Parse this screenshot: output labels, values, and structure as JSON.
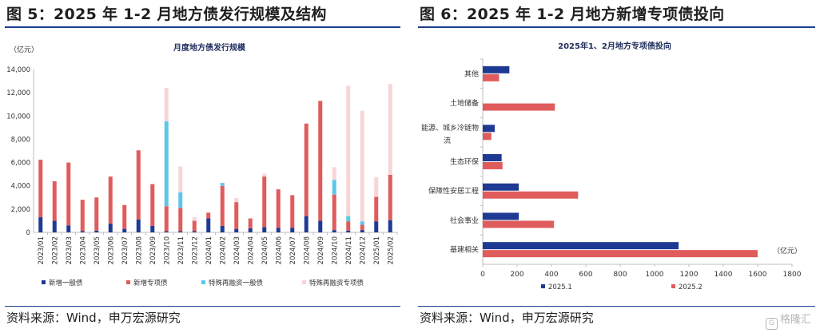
{
  "left": {
    "figure_title": "图 5：2025 年 1-2 月地方债发行规模及结构",
    "source": "资料来源：Wind，申万宏源研究"
  },
  "right": {
    "figure_title": "图 6：2025 年 1-2 月地方新增专项债投向",
    "source": "资料来源：Wind，申万宏源研究"
  },
  "watermark": "格隆汇",
  "colors": {
    "navy": "#1f3a93",
    "red": "#e05c5c",
    "cyan": "#5bc8ea",
    "pink": "#f8d5d5",
    "rule": "#1c3f8c"
  },
  "chart_data": [
    {
      "type": "bar",
      "stacked": true,
      "title": "月度地方债发行规模",
      "ylabel": "（亿元）",
      "ylim": [
        0,
        14000
      ],
      "yticks": [
        "0",
        "2,000",
        "4,000",
        "6,000",
        "8,000",
        "10,000",
        "12,000",
        "14,000"
      ],
      "categories": [
        "2023/01",
        "2023/02",
        "2023/03",
        "2023/04",
        "2023/05",
        "2023/06",
        "2023/07",
        "2023/08",
        "2023/09",
        "2023/10",
        "2023/11",
        "2023/12",
        "2024/01",
        "2024/02",
        "2024/03",
        "2024/04",
        "2024/05",
        "2024/06",
        "2024/07",
        "2024/08",
        "2024/09",
        "2024/10",
        "2024/11",
        "2024/12",
        "2025/01",
        "2025/02"
      ],
      "series": [
        {
          "name": "新增一般债",
          "color": "#1f3a93",
          "values": [
            1300,
            1000,
            600,
            100,
            150,
            750,
            300,
            1100,
            550,
            100,
            100,
            100,
            1200,
            550,
            300,
            350,
            450,
            400,
            400,
            1400,
            1000,
            200,
            150,
            200,
            950,
            1050
          ]
        },
        {
          "name": "新增专项债",
          "color": "#e05c5c",
          "values": [
            4950,
            3400,
            5400,
            2700,
            2850,
            4050,
            2050,
            5950,
            3600,
            2150,
            2000,
            900,
            500,
            3450,
            2300,
            850,
            4350,
            3300,
            2800,
            7950,
            10300,
            3050,
            800,
            450,
            2100,
            3900
          ]
        },
        {
          "name": "特殊再融资一般债",
          "color": "#5bc8ea",
          "values": [
            0,
            0,
            0,
            0,
            0,
            0,
            0,
            0,
            0,
            7300,
            1350,
            0,
            0,
            250,
            0,
            0,
            0,
            0,
            0,
            0,
            0,
            1250,
            450,
            300,
            0,
            0
          ]
        },
        {
          "name": "特殊再融资专项债",
          "color": "#f8d5d5",
          "values": [
            0,
            0,
            0,
            0,
            0,
            0,
            0,
            0,
            0,
            2850,
            2200,
            300,
            0,
            0,
            350,
            0,
            250,
            0,
            0,
            0,
            0,
            1100,
            11200,
            9500,
            1700,
            7800
          ]
        }
      ]
    },
    {
      "type": "bar",
      "orientation": "horizontal",
      "title": "2025年1、2月地方专项债投向",
      "unit_label": "（亿元）",
      "xlim": [
        0,
        1800
      ],
      "xticks": [
        "0",
        "200",
        "400",
        "600",
        "800",
        "1000",
        "1200",
        "1400",
        "1600",
        "1800"
      ],
      "categories": [
        "其他",
        "土地储备",
        "能源、城乡冷链物流",
        "生态环保",
        "保障性安居工程",
        "社会事业",
        "基建相关"
      ],
      "category_lines": [
        [
          "其他"
        ],
        [
          "土地储备"
        ],
        [
          "能源、城乡冷链物",
          "流"
        ],
        [
          "生态环保"
        ],
        [
          "保障性安居工程"
        ],
        [
          "社会事业"
        ],
        [
          "基建相关"
        ]
      ],
      "series": [
        {
          "name": "2025.1",
          "color": "#1f3a93",
          "values": [
            155,
            0,
            70,
            110,
            210,
            210,
            1140
          ]
        },
        {
          "name": "2025.2",
          "color": "#e05c5c",
          "values": [
            95,
            420,
            50,
            115,
            555,
            415,
            1600
          ]
        }
      ]
    }
  ]
}
